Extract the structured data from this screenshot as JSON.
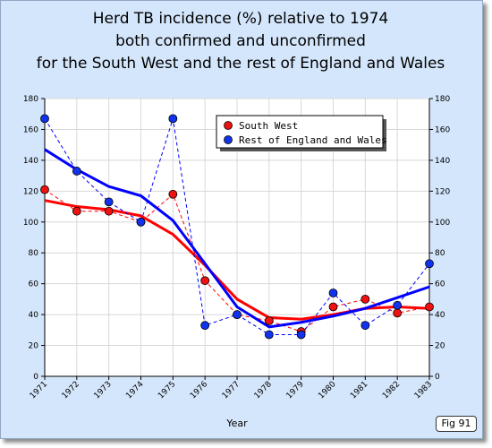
{
  "chart_data": {
    "type": "line",
    "title_lines": [
      "Herd TB incidence (%) relative to 1974",
      "both confirmed and unconfirmed",
      "for the South West and the rest of England and Wales"
    ],
    "xlabel": "Year",
    "ylabel": "",
    "categories": [
      "1971",
      "1972",
      "1973",
      "1974",
      "1975",
      "1976",
      "1977",
      "1978",
      "1979",
      "1980",
      "1981",
      "1982",
      "1983"
    ],
    "ylim": [
      0,
      180
    ],
    "yticks": [
      0,
      20,
      40,
      60,
      80,
      100,
      120,
      140,
      160,
      180
    ],
    "grid": true,
    "legend_position": "top-right",
    "series": [
      {
        "name": "South West",
        "color": "#ff0000",
        "marker_color": "#ee1111",
        "values": [
          121,
          107,
          107,
          100,
          118,
          62,
          40,
          36,
          29,
          45,
          50,
          41,
          45
        ],
        "trend": [
          114,
          110,
          108,
          104,
          92,
          72,
          50,
          38,
          37,
          40,
          44,
          45,
          44
        ]
      },
      {
        "name": "Rest of England and Wales",
        "color": "#0000ff",
        "marker_color": "#1133ee",
        "values": [
          167,
          133,
          113,
          100,
          167,
          33,
          40,
          27,
          27,
          54,
          33,
          46,
          73
        ],
        "trend": [
          147,
          134,
          123,
          117,
          101,
          73,
          45,
          32,
          35,
          39,
          44,
          51,
          58
        ]
      }
    ]
  },
  "figure_label": "Fig 91"
}
